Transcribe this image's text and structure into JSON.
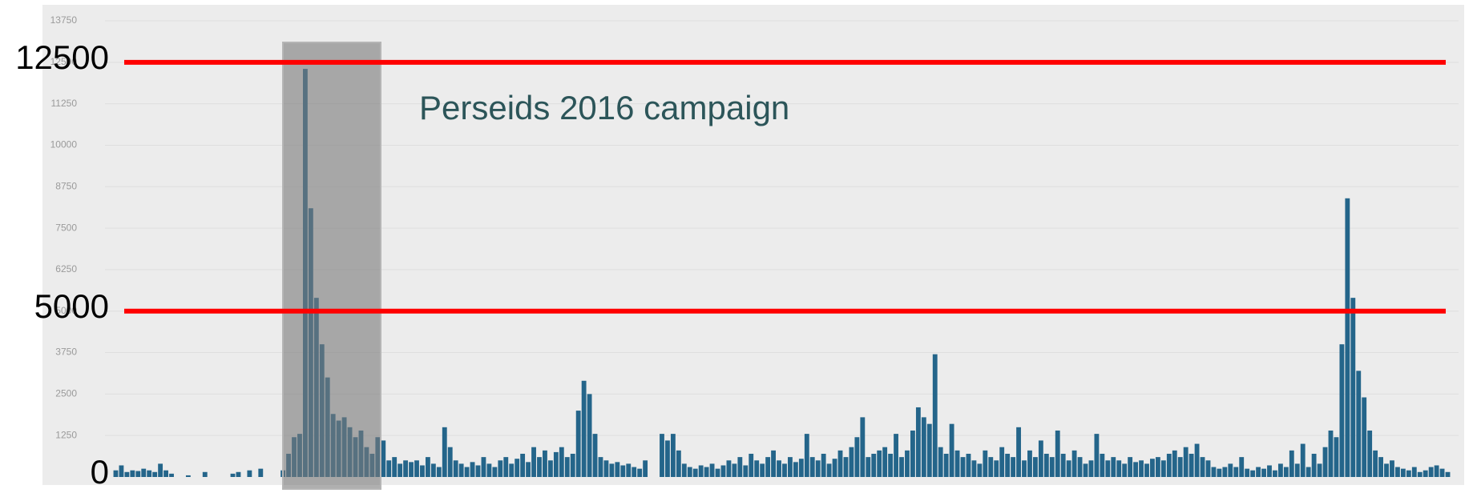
{
  "chart_data": {
    "type": "bar",
    "color": "#24658a",
    "ylim": [
      0,
      13750
    ],
    "yticks": [
      1250,
      2500,
      3750,
      5000,
      6250,
      7500,
      8750,
      10000,
      11250,
      12500,
      13750
    ],
    "grid": true,
    "annotation": "Perseids 2016 campaign",
    "reference_lines": [
      {
        "value": 12500,
        "label": "12500",
        "color": "#ff0000"
      },
      {
        "value": 5000,
        "label": "5000",
        "color": "#ff0000"
      },
      {
        "value": 0,
        "label": "0"
      }
    ],
    "values": [
      200,
      350,
      150,
      200,
      180,
      250,
      200,
      150,
      400,
      200,
      100,
      0,
      0,
      50,
      0,
      0,
      150,
      0,
      0,
      0,
      0,
      100,
      150,
      0,
      200,
      0,
      250,
      0,
      0,
      0,
      200,
      700,
      1200,
      1300,
      12300,
      8100,
      5400,
      4000,
      3000,
      1900,
      1700,
      1800,
      1500,
      1200,
      1400,
      900,
      700,
      1200,
      1100,
      500,
      600,
      400,
      500,
      450,
      500,
      350,
      600,
      400,
      300,
      1500,
      900,
      500,
      400,
      300,
      450,
      350,
      600,
      400,
      300,
      500,
      600,
      400,
      550,
      700,
      450,
      900,
      600,
      800,
      500,
      750,
      900,
      600,
      700,
      2000,
      2900,
      2500,
      1300,
      600,
      500,
      400,
      450,
      350,
      400,
      300,
      250,
      500,
      0,
      0,
      1300,
      1100,
      1300,
      800,
      400,
      300,
      250,
      350,
      300,
      400,
      250,
      350,
      500,
      400,
      600,
      350,
      700,
      500,
      400,
      600,
      800,
      500,
      400,
      600,
      450,
      550,
      1300,
      600,
      500,
      700,
      400,
      550,
      800,
      600,
      900,
      1200,
      1800,
      600,
      700,
      800,
      900,
      700,
      1300,
      600,
      800,
      1400,
      2100,
      1800,
      1600,
      3700,
      900,
      700,
      1600,
      800,
      600,
      700,
      500,
      400,
      800,
      600,
      500,
      900,
      700,
      600,
      1500,
      500,
      800,
      600,
      1100,
      700,
      600,
      1400,
      700,
      500,
      800,
      600,
      400,
      500,
      1300,
      700,
      500,
      600,
      500,
      400,
      600,
      450,
      500,
      400,
      550,
      600,
      500,
      700,
      800,
      600,
      900,
      700,
      1000,
      600,
      500,
      300,
      250,
      300,
      400,
      300,
      600,
      250,
      200,
      300,
      250,
      350,
      200,
      400,
      300,
      800,
      400,
      1000,
      300,
      700,
      400,
      900,
      1400,
      1200,
      4000,
      8400,
      5400,
      3200,
      2400,
      1400,
      800,
      600,
      400,
      500,
      300,
      250,
      200,
      300,
      150,
      200,
      300,
      350,
      250,
      150
    ]
  }
}
